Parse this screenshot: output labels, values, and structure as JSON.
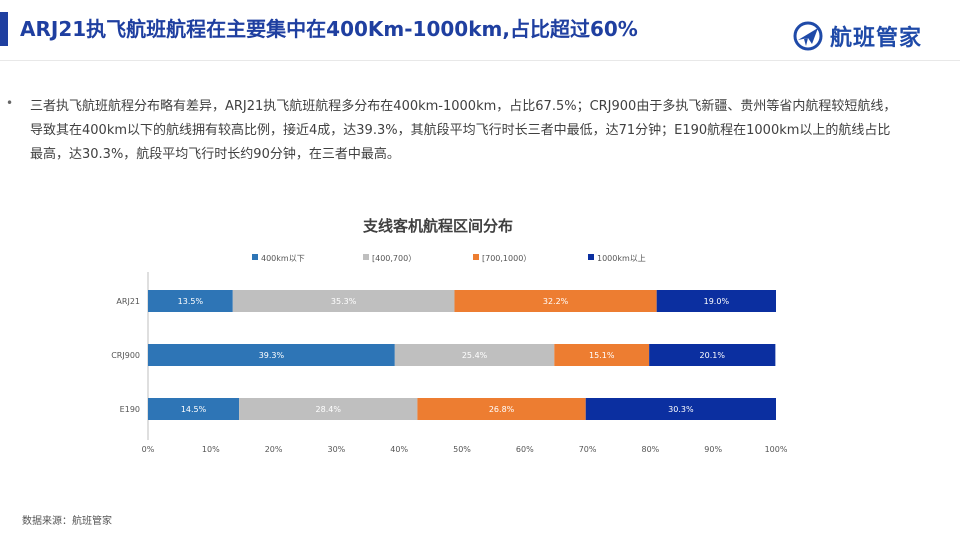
{
  "header": {
    "title": "ARJ21执飞航班航程在主要集中在400Km-1000km,占比超过60%",
    "logo_text": "航班管家",
    "accent_color": "#1f3fa0"
  },
  "body": {
    "bullet": "•",
    "description": "三者执飞航班航程分布略有差异，ARJ21执飞航班航程多分布在400km-1000km，占比67.5%；CRJ900由于多执飞新疆、贵州等省内航程较短航线，导致其在400km以下的航线拥有较高比例，接近4成，达39.3%，其航段平均飞行时长三者中最低，达71分钟；E190航程在1000km以上的航线占比最高，达30.3%，航段平均飞行时长约90分钟，在三者中最高。"
  },
  "footer": {
    "source": "数据来源：航班管家"
  },
  "chart_data": {
    "type": "bar",
    "orientation": "horizontal",
    "stacked": true,
    "title": "支线客机航程区间分布",
    "categories": [
      "ARJ21",
      "CRJ900",
      "E190"
    ],
    "series": [
      {
        "name": "400km以下",
        "color": "#2e75b6",
        "values": [
          13.5,
          39.3,
          14.5
        ]
      },
      {
        "name": "[400,700）",
        "color": "#bfbfbf",
        "values": [
          35.3,
          25.4,
          28.4
        ]
      },
      {
        "name": "[700,1000）",
        "color": "#ed7d31",
        "values": [
          32.2,
          15.1,
          26.8
        ]
      },
      {
        "name": "1000km以上",
        "color": "#0b2fa0",
        "values": [
          19.0,
          20.1,
          30.3
        ]
      }
    ],
    "xlim": [
      0,
      100
    ],
    "x_ticks": [
      "0%",
      "10%",
      "20%",
      "30%",
      "40%",
      "50%",
      "60%",
      "70%",
      "80%",
      "90%",
      "100%"
    ],
    "legend_position": "top",
    "grid": false
  }
}
